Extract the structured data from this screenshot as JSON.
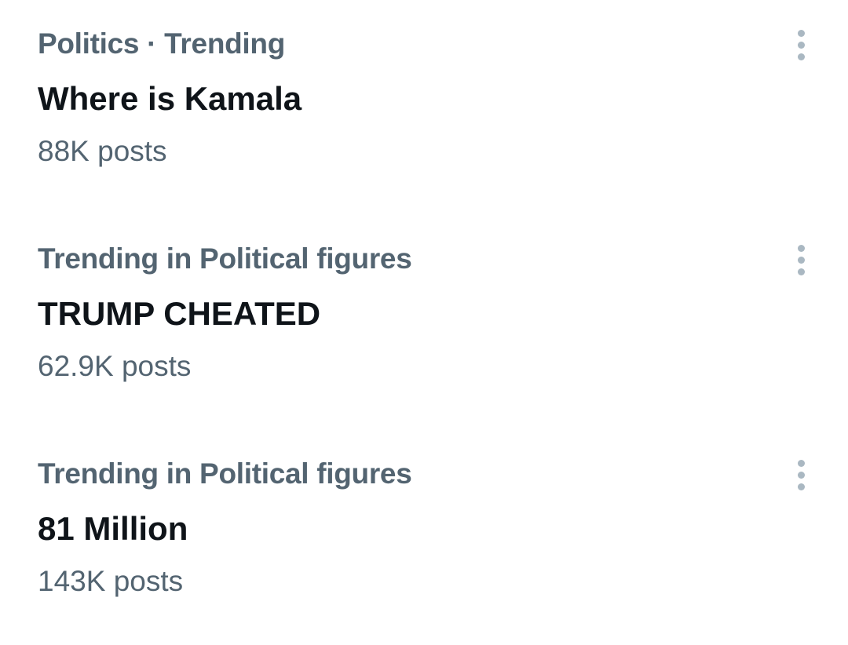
{
  "trends": [
    {
      "category": "Politics · Trending",
      "title": "Where is Kamala",
      "posts": "88K posts",
      "menu_icon": "more-vertical-icon"
    },
    {
      "category": "Trending in Political figures",
      "title": "TRUMP CHEATED",
      "posts": "62.9K posts",
      "menu_icon": "more-vertical-icon"
    },
    {
      "category": "Trending in Political figures",
      "title": "81 Million",
      "posts": "143K posts",
      "menu_icon": "more-vertical-icon"
    }
  ],
  "colors": {
    "primary_text": "#0f1419",
    "secondary_text": "#536471",
    "icon": "#aab8c2"
  }
}
